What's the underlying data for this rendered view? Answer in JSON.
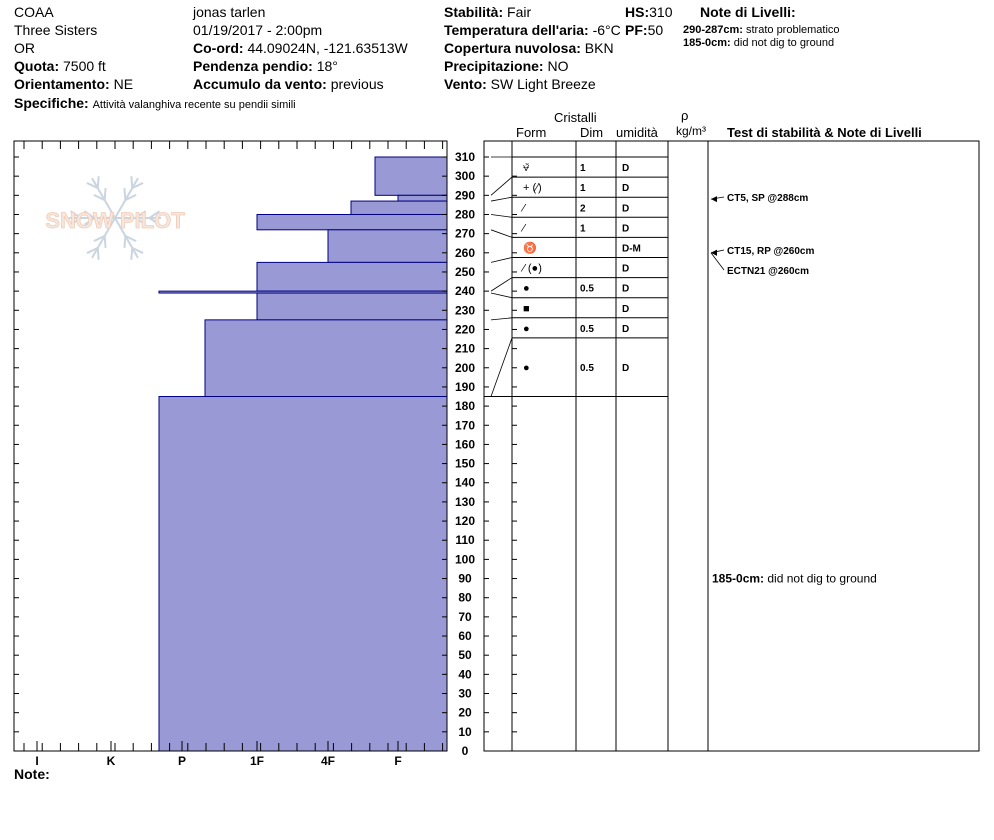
{
  "header": {
    "organization": "COAA",
    "location": "Three Sisters",
    "state": "OR",
    "elevation_label": "Quota:",
    "elevation_value": "7500 ft",
    "aspect_label": "Orientamento:",
    "aspect_value": "NE",
    "specifics_label": "Specifiche:",
    "specifics_value": "Attività valanghiva recente su pendii simili",
    "observer": "jonas tarlen",
    "datetime": "01/19/2017 - 2:00pm",
    "coord_label": "Co-ord:",
    "coord_value": "44.09024N, -121.63513W",
    "slope_label": "Pendenza pendio:",
    "slope_value": "18°",
    "wind_loading_label": "Accumulo da vento:",
    "wind_loading_value": "previous",
    "stability_label": "Stabilità:",
    "stability_value": "Fair",
    "air_temp_label": "Temperatura dell'aria:",
    "air_temp_value": "-6°C",
    "cloud_label": "Copertura nuvolosa:",
    "cloud_value": "BKN",
    "precip_label": "Precipitazione:",
    "precip_value": "NO",
    "wind_label": "Vento:",
    "wind_value": "SW  Light Breeze",
    "hs_label": "HS:",
    "hs_value": "310",
    "pf_label": "PF:",
    "pf_value": "50",
    "layer_notes_title": "Note di Livelli:",
    "layer_notes": [
      {
        "range": "290-287cm:",
        "text": "strato problematico"
      },
      {
        "range": "185-0cm:",
        "text": "did not dig to ground"
      }
    ]
  },
  "logo_text": "SNOW PILOT",
  "columns": {
    "crystals": "Cristalli",
    "form": "Form",
    "size": "Dim",
    "moisture": "umidità",
    "density_symbol": "ρ",
    "density_unit": "kg/m³",
    "tests": "Test di stabilità & Note di Livelli"
  },
  "note_label": "Note:",
  "colors": {
    "hardness_fill": "#9999d6",
    "hardness_stroke": "#000080"
  },
  "chart_data": {
    "type": "bar",
    "orientation": "horizontal",
    "xlabel": "",
    "ylabel": "",
    "ylim": [
      0,
      310
    ],
    "y_ticks": [
      310,
      300,
      290,
      280,
      270,
      260,
      250,
      240,
      230,
      220,
      210,
      200,
      190,
      180,
      170,
      160,
      150,
      140,
      130,
      120,
      110,
      100,
      90,
      80,
      70,
      60,
      50,
      40,
      30,
      20,
      10,
      0
    ],
    "hardness_scale": [
      "I",
      "K",
      "P",
      "1F",
      "4F",
      "F"
    ],
    "layers": [
      {
        "top": 310,
        "bottom": 290,
        "hardness": "F-"
      },
      {
        "top": 290,
        "bottom": 287,
        "hardness": "F"
      },
      {
        "top": 287,
        "bottom": 280,
        "hardness": "4F+"
      },
      {
        "top": 280,
        "bottom": 272,
        "hardness": "1F"
      },
      {
        "top": 272,
        "bottom": 255,
        "hardness": "4F"
      },
      {
        "top": 255,
        "bottom": 240,
        "hardness": "1F"
      },
      {
        "top": 240,
        "bottom": 239,
        "hardness": "P-"
      },
      {
        "top": 239,
        "bottom": 225,
        "hardness": "1F"
      },
      {
        "top": 225,
        "bottom": 185,
        "hardness": "P+"
      },
      {
        "top": 185,
        "bottom": 0,
        "hardness": "P-"
      }
    ],
    "layer_props": [
      {
        "form": "⩝̽",
        "size": "1",
        "moisture": "D"
      },
      {
        "form": "+ (⁄)",
        "size": "1",
        "moisture": "D"
      },
      {
        "form": "⁄",
        "size": "2",
        "moisture": "D"
      },
      {
        "form": "⁄",
        "size": "1",
        "moisture": "D"
      },
      {
        "form": "♉",
        "size": "",
        "moisture": "D-M"
      },
      {
        "form": "⁄ (●)",
        "size": "",
        "moisture": "D"
      },
      {
        "form": "●",
        "size": "0.5",
        "moisture": "D"
      },
      {
        "form": "■",
        "size": "",
        "moisture": "D"
      },
      {
        "form": "●",
        "size": "0.5",
        "moisture": "D"
      },
      {
        "form": "●",
        "size": "0.5",
        "moisture": "D"
      }
    ],
    "tests": [
      {
        "label": "CT5, SP @288cm",
        "depth": 288
      },
      {
        "label": "CT15, RP @260cm",
        "depth": 260
      },
      {
        "label": "ECTN21 @260cm",
        "depth": 260
      }
    ],
    "deep_note": {
      "range": "185-0cm:",
      "text": "did not dig to ground",
      "depth": 90
    }
  }
}
